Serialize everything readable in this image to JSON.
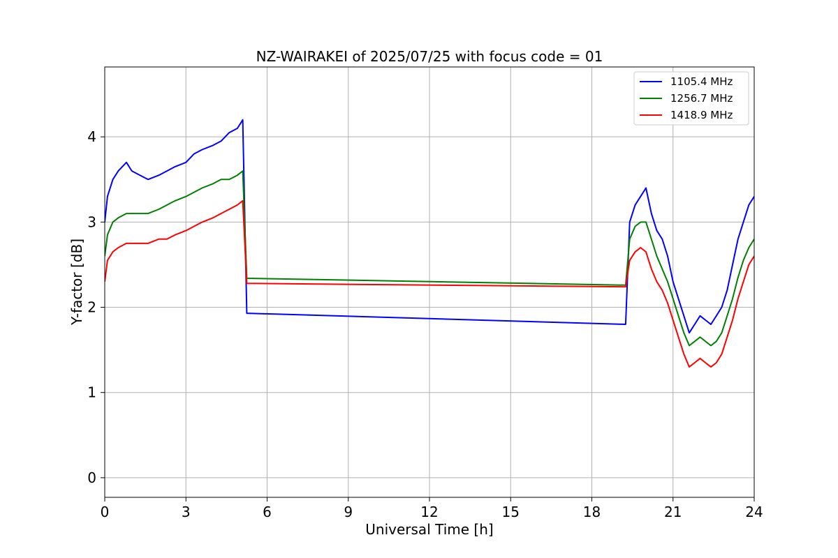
{
  "chart_data": {
    "type": "line",
    "title": "NZ-WAIRAKEI of 2025/07/25 with focus code = 01",
    "xlabel": "Universal Time [h]",
    "ylabel": "Y-factor [dB]",
    "xlim": [
      0,
      24
    ],
    "ylim": [
      -0.23,
      4.82
    ],
    "xticks": [
      0,
      3,
      6,
      9,
      12,
      15,
      18,
      21,
      24
    ],
    "yticks": [
      0,
      1,
      2,
      3,
      4
    ],
    "grid": true,
    "legend_position": "top-right",
    "series": [
      {
        "name": "1105.4 MHz",
        "color": "#0000ff",
        "x": [
          0.0,
          0.1,
          0.3,
          0.5,
          0.8,
          1.0,
          1.3,
          1.6,
          2.0,
          2.3,
          2.6,
          3.0,
          3.3,
          3.6,
          4.0,
          4.3,
          4.6,
          4.9,
          5.1,
          5.25,
          19.25,
          19.4,
          19.6,
          19.8,
          20.0,
          20.2,
          20.4,
          20.6,
          20.8,
          21.0,
          21.2,
          21.4,
          21.6,
          21.8,
          22.0,
          22.2,
          22.4,
          22.6,
          22.8,
          23.0,
          23.2,
          23.4,
          23.6,
          23.8,
          24.0
        ],
        "y": [
          3.0,
          3.3,
          3.5,
          3.6,
          3.7,
          3.6,
          3.55,
          3.5,
          3.55,
          3.6,
          3.65,
          3.7,
          3.8,
          3.85,
          3.9,
          3.95,
          4.05,
          4.1,
          4.2,
          1.93,
          1.8,
          3.0,
          3.2,
          3.3,
          3.4,
          3.1,
          2.9,
          2.8,
          2.6,
          2.3,
          2.1,
          1.9,
          1.7,
          1.8,
          1.9,
          1.85,
          1.8,
          1.9,
          2.0,
          2.2,
          2.5,
          2.8,
          3.0,
          3.2,
          3.3
        ]
      },
      {
        "name": "1256.7 MHz",
        "color": "#008000",
        "x": [
          0.0,
          0.1,
          0.3,
          0.5,
          0.8,
          1.0,
          1.3,
          1.6,
          2.0,
          2.3,
          2.6,
          3.0,
          3.3,
          3.6,
          4.0,
          4.3,
          4.6,
          4.9,
          5.1,
          5.25,
          19.25,
          19.4,
          19.6,
          19.8,
          20.0,
          20.2,
          20.4,
          20.6,
          20.8,
          21.0,
          21.2,
          21.4,
          21.6,
          21.8,
          22.0,
          22.2,
          22.4,
          22.6,
          22.8,
          23.0,
          23.2,
          23.4,
          23.6,
          23.8,
          24.0
        ],
        "y": [
          2.6,
          2.85,
          3.0,
          3.05,
          3.1,
          3.1,
          3.1,
          3.1,
          3.15,
          3.2,
          3.25,
          3.3,
          3.35,
          3.4,
          3.45,
          3.5,
          3.5,
          3.55,
          3.6,
          2.34,
          2.26,
          2.8,
          2.95,
          3.0,
          3.0,
          2.8,
          2.6,
          2.45,
          2.3,
          2.1,
          1.9,
          1.7,
          1.55,
          1.6,
          1.65,
          1.6,
          1.55,
          1.6,
          1.7,
          1.9,
          2.1,
          2.35,
          2.55,
          2.7,
          2.8
        ]
      },
      {
        "name": "1418.9 MHz",
        "color": "#ff0000",
        "x": [
          0.0,
          0.1,
          0.3,
          0.5,
          0.8,
          1.0,
          1.3,
          1.6,
          2.0,
          2.3,
          2.6,
          3.0,
          3.3,
          3.6,
          4.0,
          4.3,
          4.6,
          4.9,
          5.1,
          5.25,
          19.25,
          19.4,
          19.6,
          19.8,
          20.0,
          20.2,
          20.4,
          20.6,
          20.8,
          21.0,
          21.2,
          21.4,
          21.6,
          21.8,
          22.0,
          22.2,
          22.4,
          22.6,
          22.8,
          23.0,
          23.2,
          23.4,
          23.6,
          23.8,
          24.0
        ],
        "y": [
          2.3,
          2.55,
          2.65,
          2.7,
          2.75,
          2.75,
          2.75,
          2.75,
          2.8,
          2.8,
          2.85,
          2.9,
          2.95,
          3.0,
          3.05,
          3.1,
          3.15,
          3.2,
          3.25,
          2.28,
          2.24,
          2.55,
          2.65,
          2.7,
          2.65,
          2.45,
          2.3,
          2.2,
          2.05,
          1.85,
          1.65,
          1.45,
          1.3,
          1.35,
          1.4,
          1.35,
          1.3,
          1.35,
          1.45,
          1.65,
          1.85,
          2.1,
          2.3,
          2.5,
          2.6
        ]
      }
    ]
  }
}
